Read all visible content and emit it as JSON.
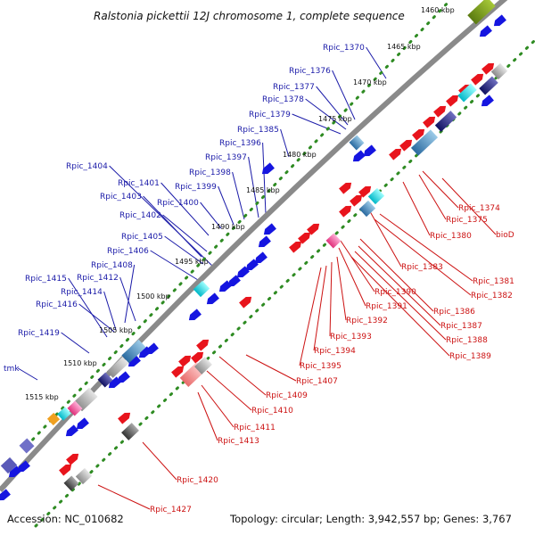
{
  "title": "Ralstonia pickettii 12J chromosome 1, complete sequence",
  "footer": {
    "accession": "Accession: NC_010682",
    "summary": "Topology: circular; Length: 3,942,557 bp; Genes: 3,767"
  },
  "colors": {
    "forward_gene": "#e8141c",
    "reverse_gene": "#1515e0",
    "backbone": "#8a8a8a",
    "tick_dots": "#2e8b22",
    "label_blue": "#1a1aa8",
    "label_red": "#cc1111"
  },
  "kbp_ticks": [
    "1460 kbp",
    "1465 kbp",
    "1470 kbp",
    "1475 kbp",
    "1480 kbp",
    "1485 kbp",
    "1490 kbp",
    "1495 kbp",
    "1500 kbp",
    "1505 kbp",
    "1510 kbp",
    "1515 kbp"
  ],
  "reverse_strand_labels": [
    "Rpic_1370",
    "Rpic_1376",
    "Rpic_1377",
    "Rpic_1378",
    "Rpic_1379",
    "Rpic_1385",
    "Rpic_1396",
    "Rpic_1397",
    "Rpic_1398",
    "Rpic_1399",
    "Rpic_1400",
    "Rpic_1401",
    "Rpic_1402",
    "Rpic_1403",
    "Rpic_1404",
    "Rpic_1405",
    "Rpic_1406",
    "Rpic_1408",
    "Rpic_1412",
    "Rpic_1414",
    "Rpic_1415",
    "Rpic_1416",
    "Rpic_1419",
    "tmk"
  ],
  "forward_strand_labels": [
    "Rpic_1374",
    "Rpic_1375",
    "bioD",
    "Rpic_1380",
    "Rpic_1381",
    "Rpic_1382",
    "Rpic_1383",
    "Rpic_1386",
    "Rpic_1387",
    "Rpic_1388",
    "Rpic_1389",
    "Rpic_1390",
    "Rpic_1391",
    "Rpic_1392",
    "Rpic_1393",
    "Rpic_1394",
    "Rpic_1395",
    "Rpic_1407",
    "Rpic_1409",
    "Rpic_1410",
    "Rpic_1411",
    "Rpic_1413",
    "Rpic_1420",
    "Rpic_1427"
  ]
}
